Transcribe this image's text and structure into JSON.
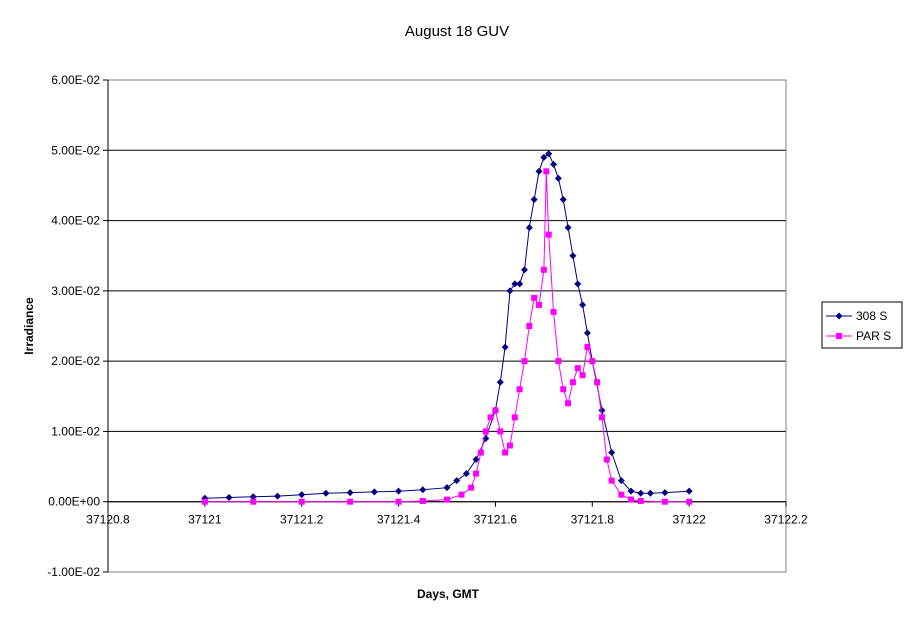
{
  "chart_data": {
    "type": "scatter",
    "title": "August 18 GUV",
    "xlabel": "Days, GMT",
    "ylabel": "Irradiance",
    "xlim": [
      37120.8,
      37122.2
    ],
    "ylim": [
      -0.01,
      0.06
    ],
    "x_ticks": [
      37120.8,
      37121,
      37121.2,
      37121.4,
      37121.6,
      37121.8,
      37122,
      37122.2
    ],
    "x_tick_labels": [
      "37120.8",
      "37121",
      "37121.2",
      "37121.4",
      "37121.6",
      "37121.8",
      "37122",
      "37122.2"
    ],
    "y_ticks": [
      -0.01,
      0,
      0.01,
      0.02,
      0.03,
      0.04,
      0.05,
      0.06
    ],
    "y_tick_labels": [
      "-1.00E-02",
      "0.00E+00",
      "1.00E-02",
      "2.00E-02",
      "3.00E-02",
      "4.00E-02",
      "5.00E-02",
      "6.00E-02"
    ],
    "grid": "horizontal",
    "legend_position": "right",
    "series": [
      {
        "name": "308 S",
        "color": "#000080",
        "marker": "diamond",
        "x": [
          37121.0,
          37121.05,
          37121.1,
          37121.15,
          37121.2,
          37121.25,
          37121.3,
          37121.35,
          37121.4,
          37121.45,
          37121.5,
          37121.52,
          37121.54,
          37121.56,
          37121.58,
          37121.6,
          37121.61,
          37121.62,
          37121.63,
          37121.64,
          37121.65,
          37121.66,
          37121.67,
          37121.68,
          37121.69,
          37121.7,
          37121.71,
          37121.72,
          37121.73,
          37121.74,
          37121.75,
          37121.76,
          37121.77,
          37121.78,
          37121.79,
          37121.8,
          37121.82,
          37121.84,
          37121.86,
          37121.88,
          37121.9,
          37121.92,
          37121.95,
          37122.0
        ],
        "y": [
          0.0005,
          0.0006,
          0.0007,
          0.0008,
          0.001,
          0.0012,
          0.0013,
          0.0014,
          0.0015,
          0.0017,
          0.002,
          0.003,
          0.004,
          0.006,
          0.009,
          0.013,
          0.017,
          0.022,
          0.03,
          0.031,
          0.031,
          0.033,
          0.039,
          0.043,
          0.047,
          0.049,
          0.0495,
          0.048,
          0.046,
          0.043,
          0.039,
          0.035,
          0.031,
          0.028,
          0.024,
          0.02,
          0.013,
          0.007,
          0.003,
          0.0015,
          0.0012,
          0.0012,
          0.0013,
          0.0015
        ]
      },
      {
        "name": "PAR S",
        "color": "#FF00FF",
        "marker": "square",
        "x": [
          37121.0,
          37121.1,
          37121.2,
          37121.3,
          37121.4,
          37121.45,
          37121.5,
          37121.53,
          37121.55,
          37121.56,
          37121.57,
          37121.58,
          37121.59,
          37121.6,
          37121.61,
          37121.62,
          37121.63,
          37121.64,
          37121.65,
          37121.66,
          37121.67,
          37121.68,
          37121.69,
          37121.7,
          37121.705,
          37121.71,
          37121.72,
          37121.73,
          37121.74,
          37121.75,
          37121.76,
          37121.77,
          37121.78,
          37121.79,
          37121.8,
          37121.81,
          37121.82,
          37121.83,
          37121.84,
          37121.86,
          37121.88,
          37121.9,
          37121.95,
          37122.0
        ],
        "y": [
          0.0,
          0.0,
          0.0,
          0.0,
          0.0,
          0.0001,
          0.0003,
          0.001,
          0.002,
          0.004,
          0.007,
          0.01,
          0.012,
          0.013,
          0.01,
          0.007,
          0.008,
          0.012,
          0.016,
          0.02,
          0.025,
          0.029,
          0.028,
          0.033,
          0.047,
          0.038,
          0.027,
          0.02,
          0.016,
          0.014,
          0.017,
          0.019,
          0.018,
          0.022,
          0.02,
          0.017,
          0.012,
          0.006,
          0.003,
          0.001,
          0.0003,
          0.0001,
          0.0,
          0.0
        ]
      }
    ]
  }
}
